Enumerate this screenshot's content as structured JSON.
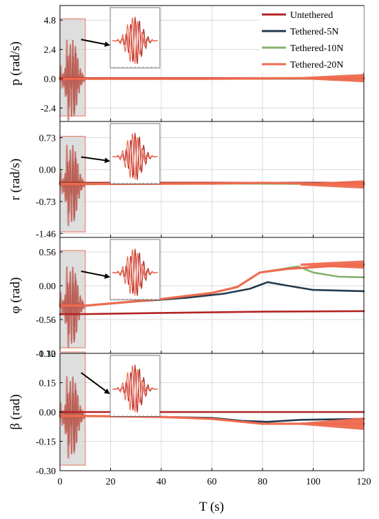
{
  "figure": {
    "xlabel": "T (s)",
    "x_ticks": [
      "0",
      "20",
      "40",
      "60",
      "80",
      "100",
      "120"
    ],
    "legend_position": "top-right"
  },
  "chart_data": [
    {
      "type": "line",
      "ylabel": "p (rad/s)",
      "xlim": [
        0,
        120
      ],
      "ylim": [
        -3.5,
        6.0
      ],
      "yticks": [
        4.8,
        2.4,
        0.0,
        -2.4
      ],
      "ytick_labels": [
        "4.8",
        "2.4",
        "0.0",
        "-2.4"
      ],
      "grid": true,
      "legend": [
        "Untethered",
        "Tethered-5N",
        "Tethered-10N",
        "Tethered-20N"
      ],
      "series": [
        {
          "name": "Untethered",
          "color": "#b22222",
          "x": [
            0,
            10,
            60,
            120
          ],
          "y": [
            0.05,
            0.05,
            0.05,
            0.05
          ]
        },
        {
          "name": "Tethered-5N",
          "color": "#22394d",
          "x": [
            0,
            10,
            60,
            120
          ],
          "y": [
            0.0,
            0.0,
            0.0,
            0.0
          ]
        },
        {
          "name": "Tethered-10N",
          "color": "#86b06a",
          "x": [
            0,
            10,
            60,
            120
          ],
          "y": [
            0.0,
            0.0,
            0.0,
            0.0
          ]
        },
        {
          "name": "Tethered-20N",
          "color": "#ee6a4e",
          "x": [
            0,
            10,
            60,
            100,
            120
          ],
          "y": [
            0.0,
            0.0,
            0.0,
            0.05,
            0.05
          ]
        }
      ]
    },
    {
      "type": "line",
      "ylabel": "r (rad/s)",
      "xlim": [
        0,
        120
      ],
      "ylim": [
        -1.55,
        1.1
      ],
      "yticks": [
        0.73,
        0.0,
        -0.73,
        -1.46
      ],
      "ytick_labels": [
        "0.73",
        "0.00",
        "-0.73",
        "-1.46"
      ],
      "grid": true,
      "series": [
        {
          "name": "Untethered",
          "color": "#b22222",
          "x": [
            0,
            10,
            60,
            120
          ],
          "y": [
            -0.3,
            -0.3,
            -0.3,
            -0.3
          ]
        },
        {
          "name": "Tethered-5N",
          "color": "#22394d",
          "x": [
            0,
            10,
            60,
            80,
            120
          ],
          "y": [
            -0.32,
            -0.32,
            -0.32,
            -0.3,
            -0.32
          ]
        },
        {
          "name": "Tethered-10N",
          "color": "#86b06a",
          "x": [
            0,
            10,
            60,
            120
          ],
          "y": [
            -0.32,
            -0.32,
            -0.32,
            -0.33
          ]
        },
        {
          "name": "Tethered-20N",
          "color": "#ee6a4e",
          "x": [
            0,
            10,
            60,
            80,
            120
          ],
          "y": [
            -0.33,
            -0.33,
            -0.32,
            -0.3,
            -0.34
          ]
        }
      ]
    },
    {
      "type": "line",
      "ylabel": "φ (rad)",
      "xlim": [
        0,
        120
      ],
      "ylim": [
        -1.12,
        0.8
      ],
      "yticks": [
        0.56,
        0.0,
        -0.56,
        -1.12
      ],
      "ytick_labels": [
        "0.56",
        "0.00",
        "-0.56",
        "-1.12"
      ],
      "grid": true,
      "series": [
        {
          "name": "Untethered",
          "color": "#b22222",
          "x": [
            0,
            10,
            40,
            80,
            120
          ],
          "y": [
            -0.47,
            -0.47,
            -0.45,
            -0.43,
            -0.42
          ]
        },
        {
          "name": "Tethered-5N",
          "color": "#22394d",
          "x": [
            0,
            10,
            30,
            50,
            65,
            75,
            82,
            90,
            100,
            120
          ],
          "y": [
            -0.33,
            -0.33,
            -0.26,
            -0.2,
            -0.13,
            -0.05,
            0.06,
            0.0,
            -0.07,
            -0.09
          ]
        },
        {
          "name": "Tethered-10N",
          "color": "#86b06a",
          "x": [
            0,
            10,
            40,
            60,
            70,
            79,
            94,
            100,
            110,
            120
          ],
          "y": [
            -0.33,
            -0.33,
            -0.22,
            -0.12,
            -0.02,
            0.22,
            0.32,
            0.22,
            0.15,
            0.14
          ]
        },
        {
          "name": "Tethered-20N",
          "color": "#ee6a4e",
          "x": [
            0,
            10,
            40,
            60,
            70,
            79,
            90,
            105,
            120
          ],
          "y": [
            -0.33,
            -0.33,
            -0.22,
            -0.12,
            -0.02,
            0.22,
            0.28,
            0.32,
            0.35
          ]
        }
      ]
    },
    {
      "type": "line",
      "ylabel": "β (rad)",
      "xlim": [
        0,
        120
      ],
      "ylim": [
        -0.3,
        0.3
      ],
      "yticks": [
        0.3,
        0.15,
        0.0,
        -0.15,
        -0.3
      ],
      "ytick_labels": [
        "0.30",
        "0.15",
        "0.00",
        "-0.15",
        "-0.30"
      ],
      "grid": true,
      "series": [
        {
          "name": "Untethered",
          "color": "#b22222",
          "x": [
            0,
            10,
            60,
            120
          ],
          "y": [
            0.0,
            0.0,
            0.0,
            0.0
          ]
        },
        {
          "name": "Tethered-5N",
          "color": "#22394d",
          "x": [
            0,
            10,
            40,
            60,
            72,
            82,
            95,
            120
          ],
          "y": [
            -0.02,
            -0.02,
            -0.025,
            -0.03,
            -0.045,
            -0.05,
            -0.04,
            -0.035
          ]
        },
        {
          "name": "Tethered-10N",
          "color": "#86b06a",
          "x": [
            0,
            10,
            40,
            60,
            80,
            100,
            120
          ],
          "y": [
            -0.02,
            -0.02,
            -0.025,
            -0.035,
            -0.06,
            -0.06,
            -0.06
          ]
        },
        {
          "name": "Tethered-20N",
          "color": "#ee6a4e",
          "x": [
            0,
            10,
            40,
            60,
            80,
            100,
            120
          ],
          "y": [
            -0.02,
            -0.02,
            -0.025,
            -0.035,
            -0.06,
            -0.06,
            -0.06
          ]
        }
      ]
    }
  ]
}
